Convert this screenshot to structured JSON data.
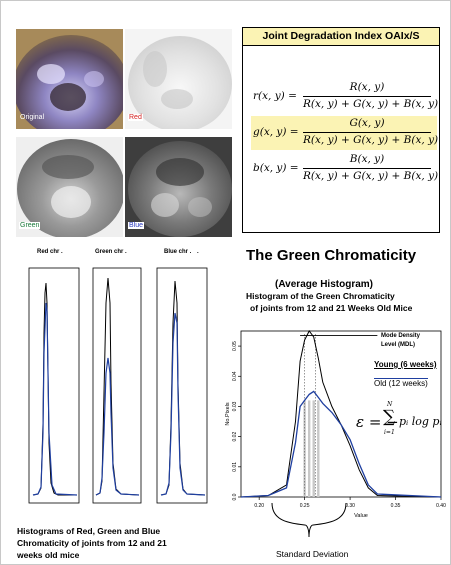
{
  "photos": [
    {
      "label": "Original",
      "label_color": "#ffffff"
    },
    {
      "label": "Red",
      "label_color": "#d42020"
    },
    {
      "label": "Green",
      "label_color": "#1a7a3a"
    },
    {
      "label": "Blue",
      "label_color": "#2b3bbf"
    }
  ],
  "formula_box": {
    "title": "Joint Degradation Index OAIx/S",
    "formulas": [
      {
        "lhs": "r(x, y) =",
        "num": "R(x, y)",
        "den": "R(x, y) + G(x, y) + B(x, y)",
        "highlight": false
      },
      {
        "lhs": "g(x, y) =",
        "num": "G(x, y)",
        "den": "R(x, y) + G(x, y) + B(x, y)",
        "highlight": true
      },
      {
        "lhs": "b(x, y) =",
        "num": "B(x, y)",
        "den": "R(x, y) + G(x, y) + B(x, y)",
        "highlight": false
      }
    ]
  },
  "small_histograms": {
    "titles": [
      "Red  chr .",
      "Green  chr .",
      "Blue chr .",
      "."
    ],
    "caption_lines": [
      "Histograms of Red, Green and Blue",
      "Chromaticity of joints from 12 and 21",
      "weeks old mice"
    ]
  },
  "green_section": {
    "heading": "The Green Chromaticity",
    "subheading": "(Average Histogram)",
    "chart_title_lines": [
      "Histogram of the Green Chromaticity",
      "of joints from 12 and 21 Weeks Old Mice"
    ],
    "legend": {
      "mdl_lines": [
        "Mode Density",
        "Level (MDL)"
      ],
      "young": "Young (6 weeks)",
      "old": "Old (12 weeks)"
    },
    "entropy_formula": {
      "lhs": "ε = −",
      "sum_top": "N",
      "sum_bottom": "i=1",
      "body": "pᵢ log pᵢ"
    },
    "std_label": "Standard Deviation"
  },
  "chart_data": {
    "type": "line",
    "xlabel": "Value",
    "ylabel": "No.Pixels",
    "xlim": [
      0.18,
      0.4
    ],
    "ylim": [
      0,
      0.055
    ],
    "x_ticks": [
      "0.20",
      "0.25",
      "0.30",
      "0.35",
      "0.40"
    ],
    "y_ticks": [
      "0.0",
      "0.01",
      "0.02",
      "0.03",
      "0.04",
      "0.05"
    ],
    "series": [
      {
        "name": "Young (6 weeks)",
        "color": "#000000",
        "x": [
          0.18,
          0.21,
          0.23,
          0.24,
          0.245,
          0.25,
          0.255,
          0.26,
          0.265,
          0.27,
          0.28,
          0.29,
          0.3,
          0.31,
          0.32,
          0.33,
          0.4
        ],
        "y": [
          0,
          0.0005,
          0.004,
          0.025,
          0.045,
          0.052,
          0.055,
          0.053,
          0.046,
          0.038,
          0.03,
          0.024,
          0.017,
          0.009,
          0.003,
          0.0005,
          0
        ]
      },
      {
        "name": "Old (12 weeks)",
        "color": "#1f3fa0",
        "x": [
          0.18,
          0.21,
          0.23,
          0.24,
          0.245,
          0.25,
          0.255,
          0.26,
          0.265,
          0.27,
          0.28,
          0.29,
          0.3,
          0.31,
          0.32,
          0.33,
          0.4
        ],
        "y": [
          0,
          0.0005,
          0.003,
          0.018,
          0.03,
          0.032,
          0.034,
          0.035,
          0.033,
          0.031,
          0.028,
          0.024,
          0.019,
          0.011,
          0.004,
          0.001,
          0
        ]
      }
    ]
  }
}
